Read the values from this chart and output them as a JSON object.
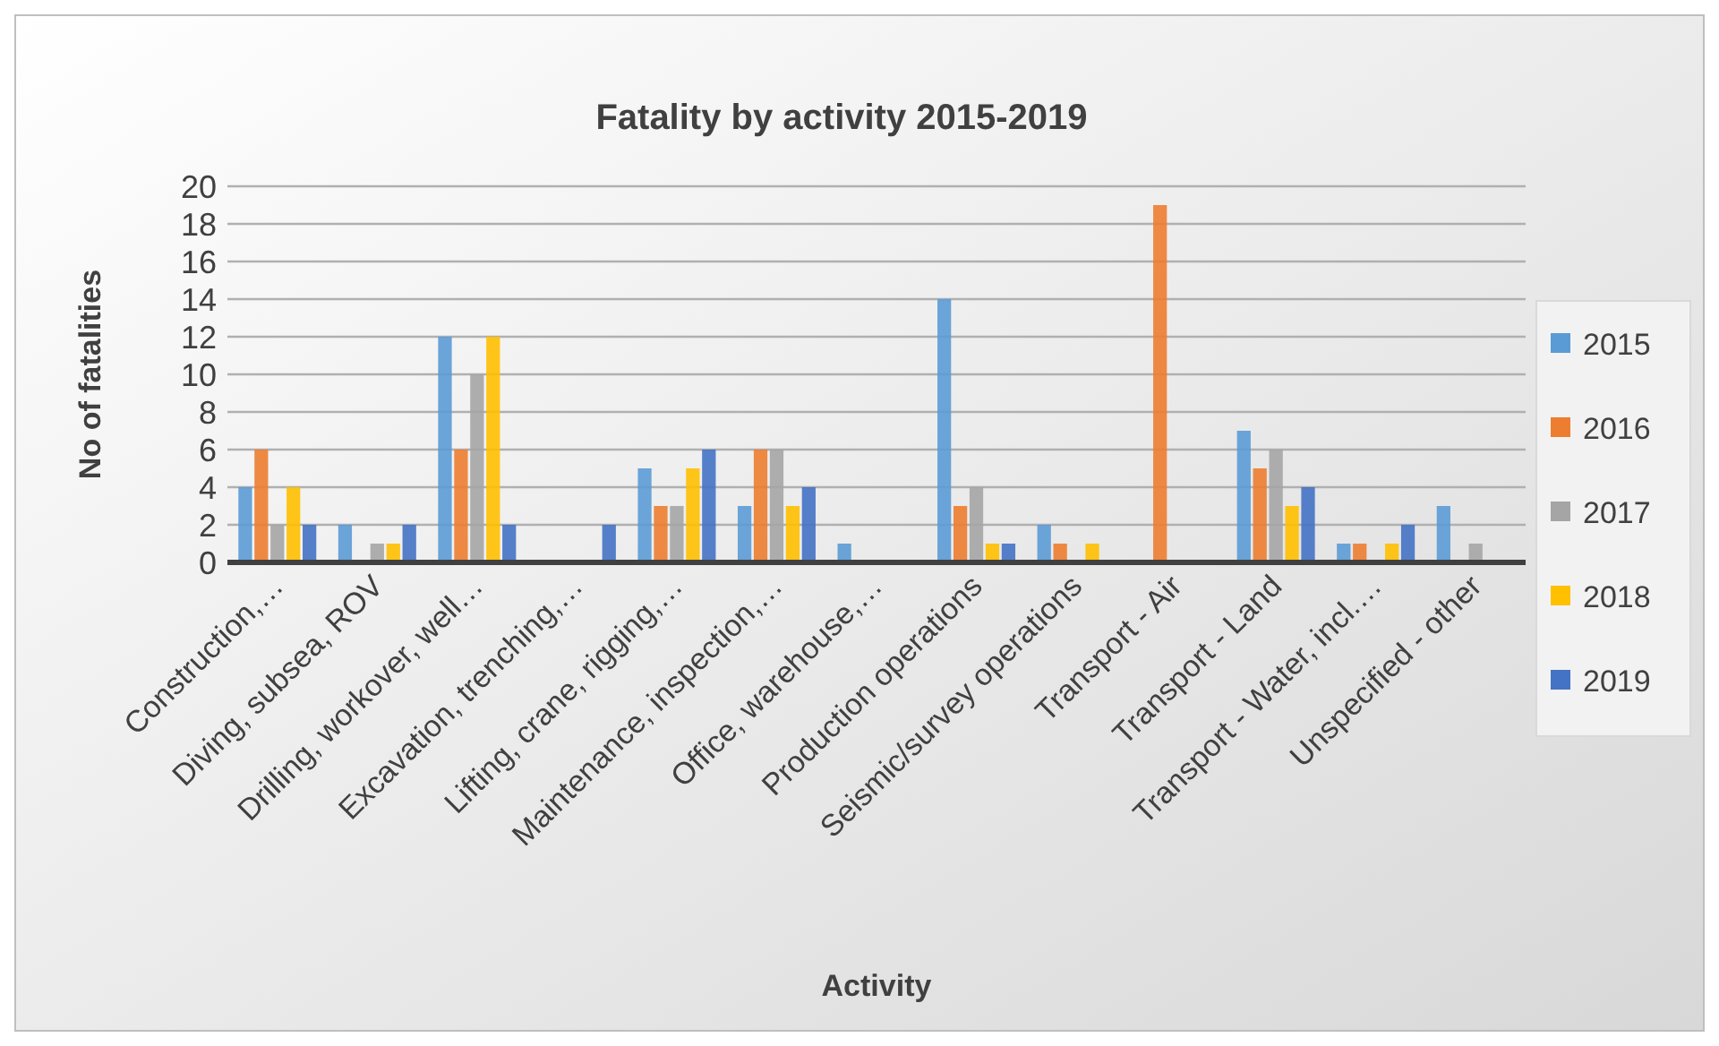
{
  "chart_data": {
    "type": "bar",
    "title": "Fatality by activity 2015-2019",
    "xlabel": "Activity",
    "ylabel": "No of fatalities",
    "categories": [
      "Construction,…",
      "Diving, subsea, ROV",
      "Drilling, workover, well…",
      "Excavation, trenching,…",
      "Lifting, crane, rigging,…",
      "Maintenance, inspection,…",
      "Office, warehouse,…",
      "Production operations",
      "Seismic/survey operations",
      "Transport - Air",
      "Transport - Land",
      "Transport - Water, incl.…",
      "Unspecified - other"
    ],
    "series": [
      {
        "name": "2015",
        "color": "#5b9bd5",
        "values": [
          4,
          2,
          12,
          0,
          5,
          3,
          1,
          14,
          2,
          0,
          7,
          1,
          3
        ]
      },
      {
        "name": "2016",
        "color": "#ed7d31",
        "values": [
          6,
          0,
          6,
          0,
          3,
          6,
          0,
          3,
          1,
          19,
          5,
          1,
          0
        ]
      },
      {
        "name": "2017",
        "color": "#a5a5a5",
        "values": [
          2,
          1,
          10,
          0,
          3,
          6,
          0,
          4,
          0,
          0,
          6,
          0,
          1
        ]
      },
      {
        "name": "2018",
        "color": "#ffc000",
        "values": [
          4,
          1,
          12,
          0,
          5,
          3,
          0,
          1,
          1,
          0,
          3,
          1,
          0
        ]
      },
      {
        "name": "2019",
        "color": "#4472c4",
        "values": [
          2,
          2,
          2,
          2,
          6,
          4,
          0,
          1,
          0,
          0,
          4,
          2,
          0
        ]
      }
    ],
    "ylim": [
      0,
      20
    ],
    "yticks": [
      0,
      2,
      4,
      6,
      8,
      10,
      12,
      14,
      16,
      18,
      20
    ],
    "grid": "y",
    "legend": "right"
  }
}
